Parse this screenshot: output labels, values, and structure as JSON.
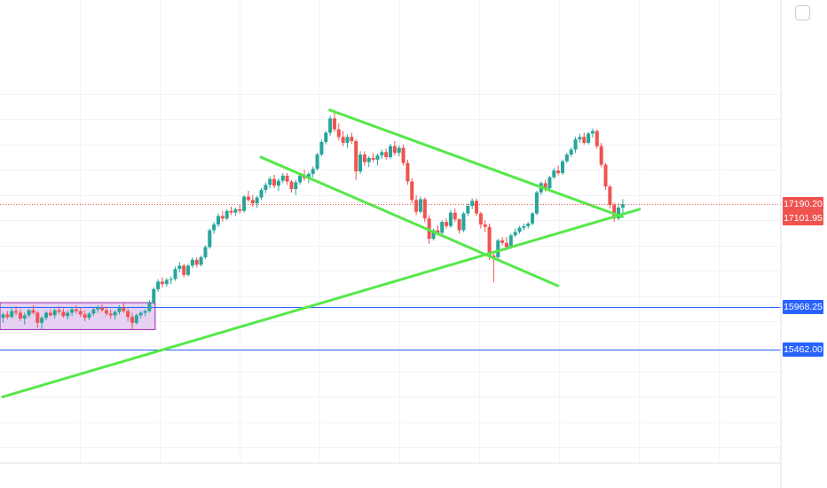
{
  "chart_data": {
    "type": "candlestick",
    "title": "",
    "xlabel": "",
    "ylabel": "",
    "ylim": [
      14200,
      18600
    ],
    "grid": true,
    "y_right_tick_levels": [
      18500,
      18200,
      17900,
      17600,
      17300,
      17000,
      16700,
      16400,
      16100,
      15800,
      15500,
      15200,
      14900,
      14600,
      14300
    ],
    "colors": {
      "up": "#26a69a",
      "down": "#ef5350",
      "trendline": "#55e84a",
      "hline": "#2962ff",
      "range_box_fill": "#e3c9f0",
      "range_box_stroke": "#9c27b0"
    },
    "last_price": {
      "value": 17190.2,
      "label": "17190.20",
      "color": "#ef5350"
    },
    "current_price": {
      "value": 17101.95,
      "label": "17101.95",
      "color": "#ef5350"
    },
    "horizontal_lines": [
      {
        "value": 15968.25,
        "label": "15968.25"
      },
      {
        "value": 15462.0,
        "label": "15462.00"
      }
    ],
    "range_box": {
      "from_bar": 0,
      "to_bar": 34,
      "high": 16020,
      "low": 15700
    },
    "trendlines": [
      {
        "name": "rising-support",
        "p1": {
          "bar": 0,
          "price": 14900
        },
        "p2": {
          "bar": 148,
          "price": 17130
        }
      },
      {
        "name": "channel-upper",
        "p1": {
          "bar": 76,
          "price": 18310
        },
        "p2": {
          "bar": 144,
          "price": 17040
        }
      },
      {
        "name": "channel-lower",
        "p1": {
          "bar": 60,
          "price": 17750
        },
        "p2": {
          "bar": 129,
          "price": 16220
        }
      }
    ],
    "candles": [
      [
        15840,
        15900,
        15780,
        15880
      ],
      [
        15880,
        15920,
        15820,
        15850
      ],
      [
        15850,
        15960,
        15830,
        15920
      ],
      [
        15920,
        15980,
        15870,
        15900
      ],
      [
        15900,
        15940,
        15800,
        15830
      ],
      [
        15830,
        15900,
        15760,
        15870
      ],
      [
        15870,
        15950,
        15840,
        15930
      ],
      [
        15930,
        15990,
        15880,
        15900
      ],
      [
        15900,
        15920,
        15720,
        15780
      ],
      [
        15780,
        15860,
        15700,
        15840
      ],
      [
        15840,
        15920,
        15810,
        15900
      ],
      [
        15900,
        15940,
        15850,
        15870
      ],
      [
        15870,
        15950,
        15830,
        15930
      ],
      [
        15930,
        15980,
        15880,
        15910
      ],
      [
        15910,
        15950,
        15840,
        15860
      ],
      [
        15860,
        15930,
        15820,
        15900
      ],
      [
        15900,
        15970,
        15860,
        15940
      ],
      [
        15940,
        15990,
        15890,
        15920
      ],
      [
        15920,
        15960,
        15850,
        15880
      ],
      [
        15880,
        15930,
        15800,
        15840
      ],
      [
        15840,
        15910,
        15810,
        15890
      ],
      [
        15890,
        15960,
        15860,
        15940
      ],
      [
        15940,
        15990,
        15900,
        15960
      ],
      [
        15960,
        16000,
        15910,
        15930
      ],
      [
        15930,
        15970,
        15860,
        15890
      ],
      [
        15890,
        15940,
        15830,
        15870
      ],
      [
        15870,
        15930,
        15820,
        15910
      ],
      [
        15910,
        15990,
        15880,
        15960
      ],
      [
        15960,
        16010,
        15900,
        15920
      ],
      [
        15920,
        15950,
        15800,
        15850
      ],
      [
        15850,
        15900,
        15700,
        15780
      ],
      [
        15780,
        15890,
        15760,
        15870
      ],
      [
        15870,
        15920,
        15830,
        15900
      ],
      [
        15900,
        15940,
        15860,
        15920
      ],
      [
        15920,
        16050,
        15900,
        16020
      ],
      [
        16020,
        16200,
        16000,
        16180
      ],
      [
        16180,
        16300,
        16150,
        16270
      ],
      [
        16270,
        16320,
        16200,
        16240
      ],
      [
        16240,
        16310,
        16210,
        16290
      ],
      [
        16290,
        16330,
        16240,
        16300
      ],
      [
        16300,
        16450,
        16280,
        16420
      ],
      [
        16420,
        16500,
        16380,
        16460
      ],
      [
        16460,
        16480,
        16320,
        16350
      ],
      [
        16350,
        16480,
        16330,
        16460
      ],
      [
        16460,
        16560,
        16430,
        16530
      ],
      [
        16530,
        16560,
        16440,
        16470
      ],
      [
        16470,
        16580,
        16450,
        16560
      ],
      [
        16560,
        16700,
        16540,
        16680
      ],
      [
        16680,
        16900,
        16660,
        16880
      ],
      [
        16880,
        16980,
        16840,
        16950
      ],
      [
        16950,
        17080,
        16920,
        17050
      ],
      [
        17050,
        17110,
        16980,
        17020
      ],
      [
        17020,
        17130,
        17000,
        17110
      ],
      [
        17110,
        17160,
        17060,
        17090
      ],
      [
        17090,
        17150,
        17050,
        17130
      ],
      [
        17130,
        17180,
        17080,
        17110
      ],
      [
        17110,
        17300,
        17090,
        17280
      ],
      [
        17280,
        17350,
        17220,
        17240
      ],
      [
        17240,
        17300,
        17160,
        17200
      ],
      [
        17200,
        17290,
        17150,
        17270
      ],
      [
        17270,
        17380,
        17240,
        17360
      ],
      [
        17360,
        17450,
        17320,
        17420
      ],
      [
        17420,
        17520,
        17380,
        17490
      ],
      [
        17490,
        17540,
        17380,
        17410
      ],
      [
        17410,
        17500,
        17350,
        17470
      ],
      [
        17470,
        17560,
        17440,
        17530
      ],
      [
        17530,
        17560,
        17420,
        17460
      ],
      [
        17460,
        17480,
        17330,
        17370
      ],
      [
        17370,
        17480,
        17300,
        17450
      ],
      [
        17450,
        17560,
        17420,
        17530
      ],
      [
        17530,
        17600,
        17470,
        17500
      ],
      [
        17500,
        17570,
        17440,
        17550
      ],
      [
        17550,
        17640,
        17510,
        17610
      ],
      [
        17610,
        17800,
        17590,
        17780
      ],
      [
        17780,
        17960,
        17760,
        17930
      ],
      [
        17930,
        18060,
        17900,
        18040
      ],
      [
        18040,
        18240,
        18000,
        18210
      ],
      [
        18210,
        18290,
        18050,
        18080
      ],
      [
        18080,
        18150,
        17950,
        17990
      ],
      [
        17990,
        18060,
        17880,
        17920
      ],
      [
        17920,
        18020,
        17860,
        17990
      ],
      [
        17990,
        18040,
        17910,
        17940
      ],
      [
        17940,
        17960,
        17480,
        17580
      ],
      [
        17580,
        17820,
        17550,
        17780
      ],
      [
        17780,
        17820,
        17650,
        17690
      ],
      [
        17690,
        17760,
        17630,
        17740
      ],
      [
        17740,
        17800,
        17690,
        17720
      ],
      [
        17720,
        17790,
        17650,
        17770
      ],
      [
        17770,
        17840,
        17730,
        17810
      ],
      [
        17810,
        17850,
        17720,
        17750
      ],
      [
        17750,
        17910,
        17730,
        17880
      ],
      [
        17880,
        17940,
        17770,
        17800
      ],
      [
        17800,
        17890,
        17760,
        17860
      ],
      [
        17860,
        17900,
        17650,
        17680
      ],
      [
        17680,
        17720,
        17420,
        17460
      ],
      [
        17460,
        17500,
        17200,
        17240
      ],
      [
        17240,
        17300,
        17060,
        17100
      ],
      [
        17100,
        17280,
        17080,
        17250
      ],
      [
        17250,
        17270,
        16980,
        17020
      ],
      [
        17020,
        17060,
        16720,
        16780
      ],
      [
        16780,
        16900,
        16760,
        16880
      ],
      [
        16880,
        16940,
        16820,
        16850
      ],
      [
        16850,
        17000,
        16830,
        16980
      ],
      [
        16980,
        17020,
        16900,
        16930
      ],
      [
        16930,
        17120,
        16910,
        17090
      ],
      [
        17090,
        17140,
        16980,
        17010
      ],
      [
        17010,
        17020,
        16840,
        16880
      ],
      [
        16880,
        17100,
        16860,
        17080
      ],
      [
        17080,
        17200,
        17050,
        17170
      ],
      [
        17170,
        17260,
        17130,
        17230
      ],
      [
        17230,
        17260,
        17050,
        17080
      ],
      [
        17080,
        17100,
        16900,
        16950
      ],
      [
        16950,
        17000,
        16860,
        16920
      ],
      [
        16920,
        16960,
        16530,
        16580
      ],
      [
        16580,
        16600,
        16260,
        16560
      ],
      [
        16560,
        16780,
        16540,
        16760
      ],
      [
        16760,
        16800,
        16700,
        16730
      ],
      [
        16730,
        16800,
        16640,
        16680
      ],
      [
        16680,
        16840,
        16660,
        16820
      ],
      [
        16820,
        16900,
        16800,
        16860
      ],
      [
        16860,
        16930,
        16840,
        16910
      ],
      [
        16910,
        16960,
        16880,
        16930
      ],
      [
        16930,
        16980,
        16900,
        16960
      ],
      [
        16960,
        17100,
        16940,
        17080
      ],
      [
        17080,
        17350,
        17060,
        17330
      ],
      [
        17330,
        17460,
        17300,
        17440
      ],
      [
        17440,
        17480,
        17340,
        17380
      ],
      [
        17380,
        17530,
        17360,
        17510
      ],
      [
        17510,
        17620,
        17490,
        17590
      ],
      [
        17590,
        17650,
        17530,
        17560
      ],
      [
        17560,
        17720,
        17540,
        17700
      ],
      [
        17700,
        17800,
        17680,
        17780
      ],
      [
        17780,
        17860,
        17750,
        17840
      ],
      [
        17840,
        17990,
        17800,
        17960
      ],
      [
        17960,
        18030,
        17920,
        17990
      ],
      [
        17990,
        18040,
        17900,
        17920
      ],
      [
        17920,
        18050,
        17900,
        18030
      ],
      [
        18030,
        18090,
        17980,
        18060
      ],
      [
        18060,
        18080,
        17850,
        17880
      ],
      [
        17880,
        17920,
        17630,
        17660
      ],
      [
        17660,
        17680,
        17360,
        17400
      ],
      [
        17400,
        17420,
        17140,
        17180
      ],
      [
        17180,
        17210,
        16980,
        17020
      ],
      [
        17020,
        17200,
        17000,
        17150
      ],
      [
        17150,
        17250,
        17080,
        17190
      ]
    ]
  }
}
